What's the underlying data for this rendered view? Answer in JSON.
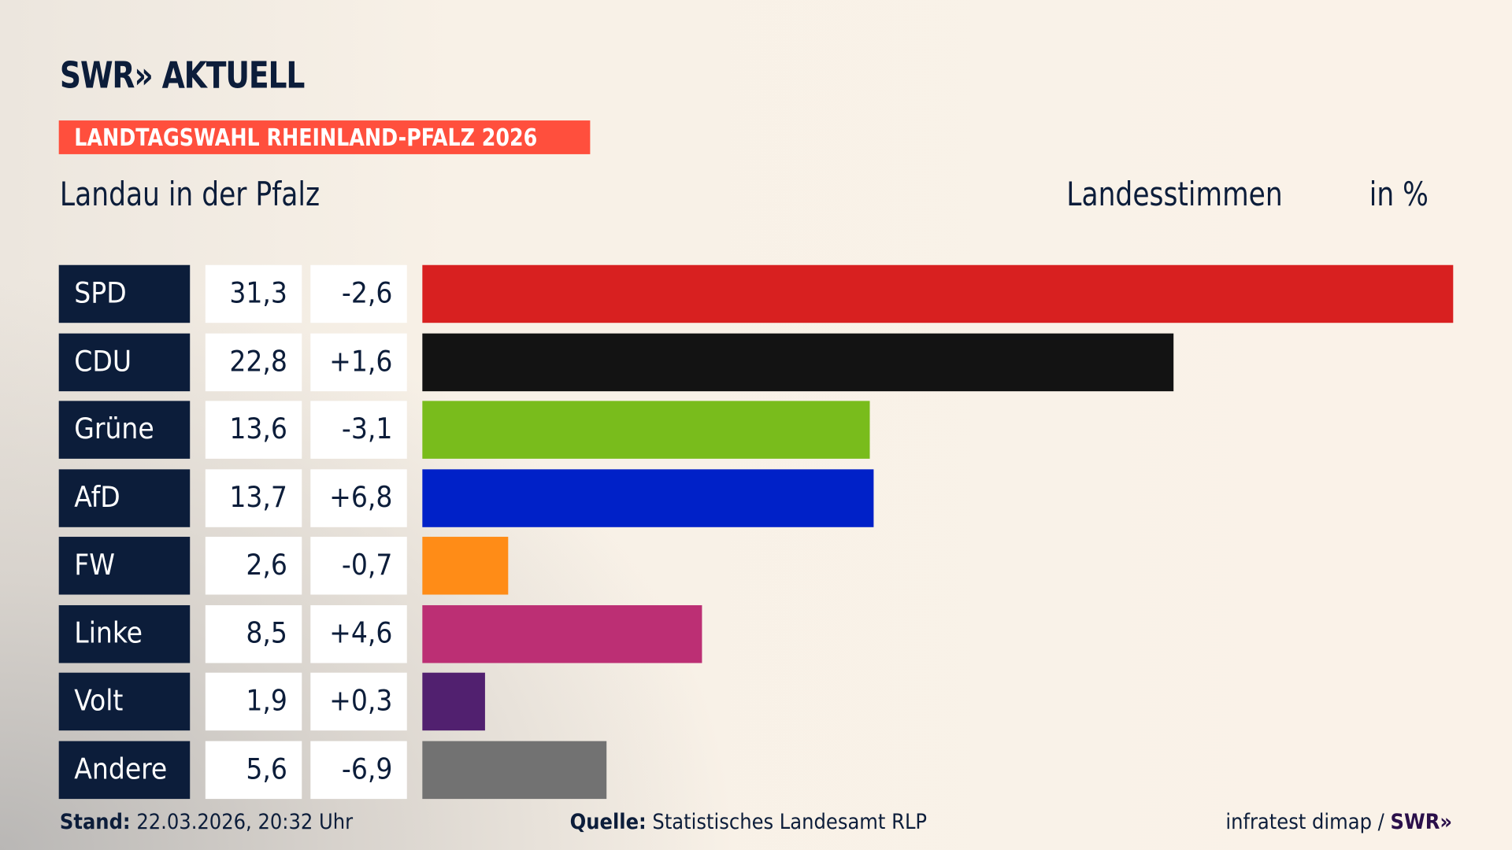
{
  "header": {
    "logo": "SWR» AKTUELL",
    "banner": "LANDTAGSWAHL RHEINLAND-PFALZ 2026",
    "region": "Landau in der Pfalz",
    "measure": "Landesstimmen",
    "unit": "in %"
  },
  "chart_data": {
    "type": "bar",
    "orientation": "horizontal",
    "categories": [
      "SPD",
      "CDU",
      "Grüne",
      "AfD",
      "FW",
      "Linke",
      "Volt",
      "Andere"
    ],
    "values": [
      31.3,
      22.8,
      13.6,
      13.7,
      2.6,
      8.5,
      1.9,
      5.6
    ],
    "value_labels": [
      "31,3",
      "22,8",
      "13,6",
      "13,7",
      "2,6",
      "8,5",
      "1,9",
      "5,6"
    ],
    "change_labels": [
      "-2,6",
      "+1,6",
      "-3,1",
      "+6,8",
      "-0,7",
      "+4,6",
      "+0,3",
      "-6,9"
    ],
    "colors": [
      "#d82020",
      "#131313",
      "#79bc1c",
      "#0021c8",
      "#ff8c17",
      "#bc2f74",
      "#51206f",
      "#727272"
    ],
    "xlim": [
      0,
      31.3
    ],
    "grid": false
  },
  "footer": {
    "stand_label": "Stand:",
    "stand_value": "22.03.2026, 20:32 Uhr",
    "source_label": "Quelle:",
    "source_value": "Statistisches Landesamt RLP",
    "credit": "infratest dimap /",
    "credit_logo": "SWR»"
  }
}
